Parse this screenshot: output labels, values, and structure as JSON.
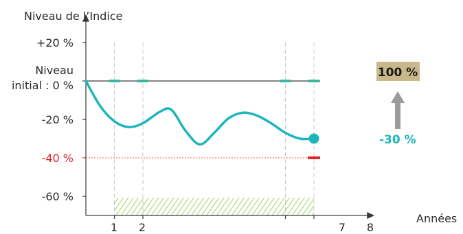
{
  "chart_data": {
    "type": "line",
    "ylabel": "Niveau de l’Indice",
    "xlabel": "Années",
    "y_ticks": [
      {
        "value": 20,
        "label": "+20 %"
      },
      {
        "value": 0,
        "label_line1": "Niveau",
        "label_line2": "initial : 0 %"
      },
      {
        "value": -20,
        "label": "-20 %"
      },
      {
        "value": -40,
        "label": "-40 %",
        "highlight": true
      },
      {
        "value": -60,
        "label": "-60 %"
      }
    ],
    "x_ticks": [
      {
        "value": 1,
        "label": "1"
      },
      {
        "value": 2,
        "label": "2"
      },
      {
        "value": 7,
        "label": "7"
      },
      {
        "value": 8,
        "label": "8"
      }
    ],
    "ylim": [
      -70,
      28
    ],
    "xlim": [
      0,
      8.8
    ],
    "initial_level": 0,
    "barrier_level": -40,
    "series": [
      {
        "x": [
          0,
          0.5,
          1.0,
          1.5,
          2.0,
          2.6,
          3.0,
          3.5,
          4.0,
          4.5,
          5.0,
          5.5,
          6.0,
          6.5,
          7.0,
          7.5,
          8.0
        ],
        "y": [
          0,
          -13,
          -21,
          -24,
          -22,
          -16,
          -15,
          -26,
          -33,
          -27,
          -19.5,
          -16.5,
          -18,
          -22,
          -27,
          -30,
          -30
        ]
      }
    ],
    "observation_dates": [
      1,
      2,
      7,
      8
    ],
    "final_value": -30,
    "final_label": "-30 %",
    "payout_label": "100 %",
    "colors": {
      "line": "#1db6bd",
      "marker": "#3ab79a",
      "barrier": "#e2232a",
      "payout_box": "#c9b98a",
      "arrow": "#9b9b9b",
      "hatch": "#8cc63f",
      "axis": "#3a3a3a",
      "grid": "#c8c8c8"
    }
  }
}
